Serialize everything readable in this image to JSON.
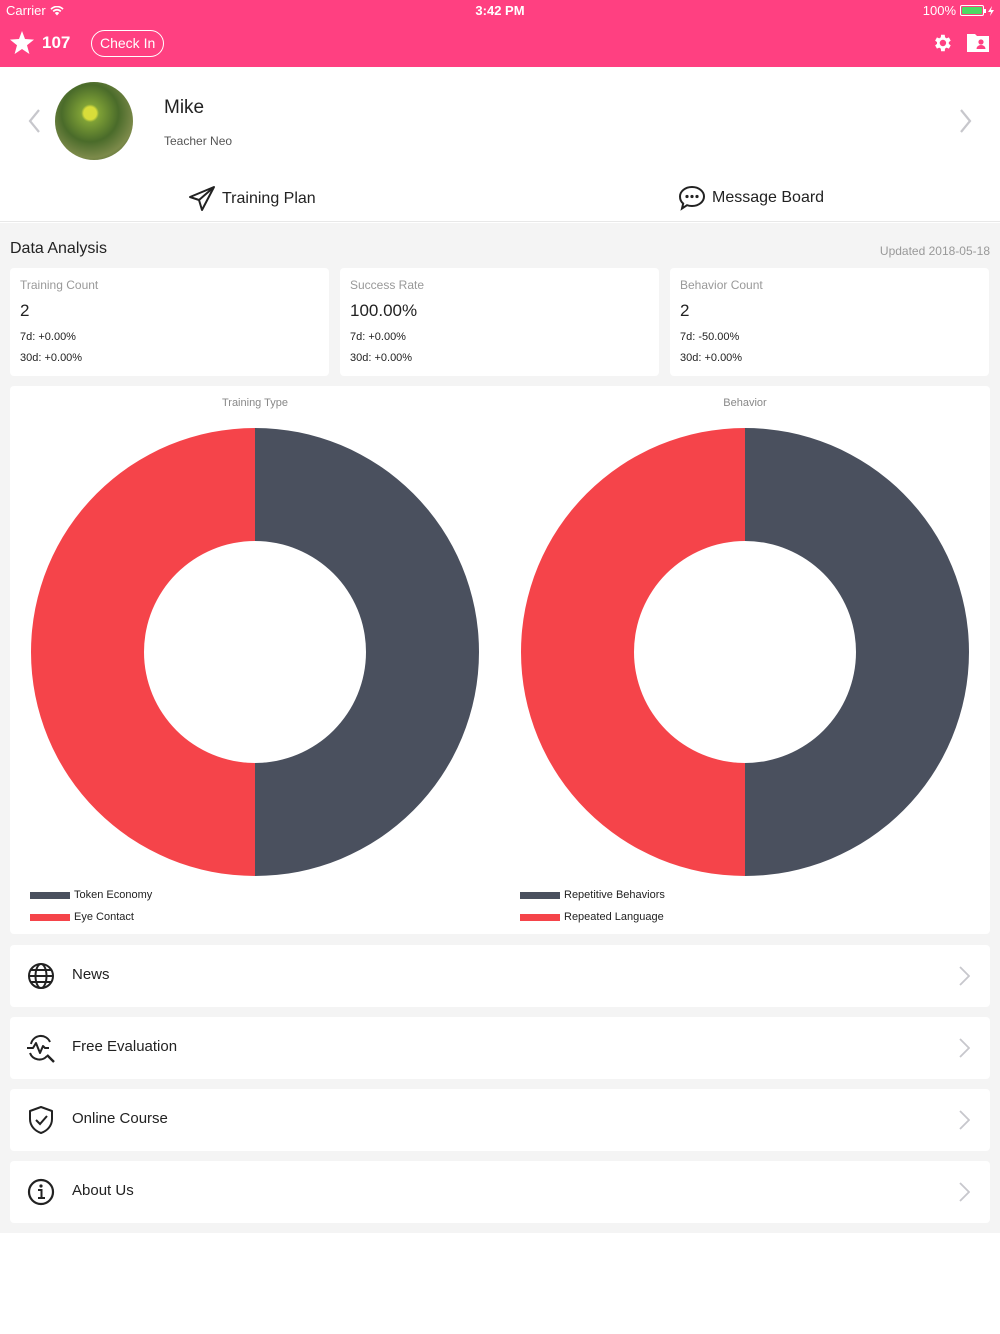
{
  "status_bar": {
    "carrier": "Carrier",
    "time": "3:42 PM",
    "battery": "100%"
  },
  "header": {
    "star_count": "107",
    "checkin_label": "Check In",
    "icons": [
      "star-icon",
      "gear-icon",
      "profile-folder-icon"
    ],
    "color": "#ff4081"
  },
  "profile": {
    "name": "Mike",
    "teacher": "Teacher Neo",
    "actions": {
      "training_plan": "Training Plan",
      "message_board": "Message Board"
    }
  },
  "analysis": {
    "title": "Data Analysis",
    "updated": "Updated 2018-05-18",
    "cards": [
      {
        "label": "Training Count",
        "value": "2",
        "d7": "7d: +0.00%",
        "d30": "30d: +0.00%"
      },
      {
        "label": "Success Rate",
        "value": "100.00%",
        "d7": "7d: +0.00%",
        "d30": "30d: +0.00%"
      },
      {
        "label": "Behavior Count",
        "value": "2",
        "d7": "7d: -50.00%",
        "d30": "30d: +0.00%"
      }
    ]
  },
  "chart_data": [
    {
      "type": "pie",
      "title": "Training Type",
      "categories": [
        "Token Economy",
        "Eye Contact"
      ],
      "values": [
        1,
        1
      ],
      "colors": [
        "#4a505e",
        "#f5444a"
      ],
      "donut": true,
      "legend": "bottom-left"
    },
    {
      "type": "pie",
      "title": "Behavior",
      "categories": [
        "Repetitive Behaviors",
        "Repeated Language"
      ],
      "values": [
        1,
        1
      ],
      "colors": [
        "#4a505e",
        "#f5444a"
      ],
      "donut": true,
      "legend": "bottom-left"
    }
  ],
  "menu": [
    {
      "label": "News",
      "icon": "globe-icon"
    },
    {
      "label": "Free Evaluation",
      "icon": "evaluation-icon"
    },
    {
      "label": "Online Course",
      "icon": "shield-check-icon"
    },
    {
      "label": "About Us",
      "icon": "info-icon"
    }
  ]
}
